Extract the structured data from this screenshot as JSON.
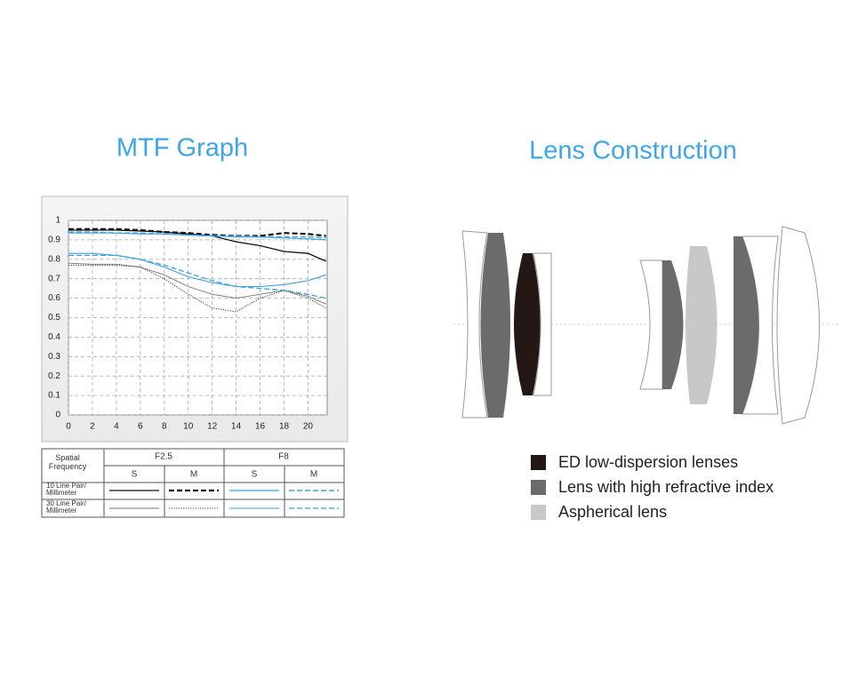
{
  "chart_data": {
    "type": "line",
    "title": "MTF Graph",
    "x": [
      0,
      2,
      4,
      6,
      8,
      10,
      12,
      14,
      16,
      18,
      20,
      21.5
    ],
    "xlim": [
      0,
      21.6
    ],
    "ylim": [
      0,
      1
    ],
    "xticks": [
      0,
      2,
      4,
      6,
      8,
      10,
      12,
      14,
      16,
      18,
      20
    ],
    "yticks": [
      0,
      0.1,
      0.2,
      0.3,
      0.4,
      0.5,
      0.6,
      0.7,
      0.8,
      0.9,
      1
    ],
    "grid": true,
    "series": [
      {
        "color": "#111111",
        "dash": "solid",
        "width": 1.3,
        "values": [
          0.95,
          0.95,
          0.95,
          0.945,
          0.94,
          0.93,
          0.92,
          0.89,
          0.87,
          0.84,
          0.83,
          0.79
        ]
      },
      {
        "color": "#111111",
        "dash": "dashed",
        "width": 2.2,
        "values": [
          0.955,
          0.955,
          0.955,
          0.95,
          0.94,
          0.935,
          0.925,
          0.92,
          0.92,
          0.935,
          0.93,
          0.92
        ]
      },
      {
        "color": "#3aa0e0",
        "dash": "solid",
        "width": 1.2,
        "values": [
          0.935,
          0.935,
          0.935,
          0.93,
          0.93,
          0.925,
          0.92,
          0.915,
          0.915,
          0.91,
          0.905,
          0.9
        ]
      },
      {
        "color": "#3aa0e0",
        "dash": "dashed",
        "width": 1.4,
        "values": [
          0.94,
          0.94,
          0.935,
          0.935,
          0.93,
          0.925,
          0.92,
          0.92,
          0.915,
          0.915,
          0.915,
          0.91
        ]
      },
      {
        "color": "#777777",
        "dash": "solid",
        "width": 0.9,
        "values": [
          0.78,
          0.775,
          0.775,
          0.76,
          0.72,
          0.66,
          0.62,
          0.6,
          0.62,
          0.64,
          0.61,
          0.57
        ]
      },
      {
        "color": "#444444",
        "dash": "dotted",
        "width": 1.1,
        "values": [
          0.77,
          0.77,
          0.77,
          0.76,
          0.7,
          0.62,
          0.55,
          0.53,
          0.6,
          0.64,
          0.6,
          0.55
        ]
      },
      {
        "color": "#3aa0e0",
        "dash": "solid",
        "width": 1.1,
        "values": [
          0.83,
          0.83,
          0.82,
          0.8,
          0.76,
          0.71,
          0.68,
          0.66,
          0.66,
          0.67,
          0.69,
          0.72
        ]
      },
      {
        "color": "#3aa0e0",
        "dash": "dashed",
        "width": 1.3,
        "values": [
          0.82,
          0.82,
          0.82,
          0.8,
          0.77,
          0.73,
          0.69,
          0.66,
          0.65,
          0.64,
          0.62,
          0.6
        ]
      }
    ]
  },
  "legend_table": {
    "header": "Spatial Frequency",
    "apertures": [
      "F2.5",
      "F8"
    ],
    "columns": [
      "S",
      "M",
      "S",
      "M"
    ],
    "rows": [
      "10 Line Pair/ Millimeter",
      "30 Line Pair/ Millimeter"
    ]
  },
  "lens_construction": {
    "title": "Lens Construction",
    "legend": [
      {
        "label": "ED low-dispersion lenses",
        "color": "#231815"
      },
      {
        "label": "Lens with high refractive index",
        "color": "#6b6b6b"
      },
      {
        "label": "Aspherical lens",
        "color": "#c8c8c8"
      }
    ]
  }
}
